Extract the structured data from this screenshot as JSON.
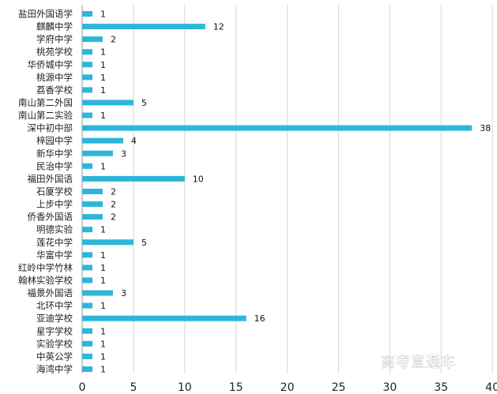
{
  "chart_data": {
    "type": "bar",
    "orientation": "horizontal",
    "categories": [
      "盐田外国语学",
      "麒麟中学",
      "学府中学",
      "桃苑学校",
      "华侨城中学",
      "桃源中学",
      "荔香学校",
      "南山第二外国",
      "南山第二实验",
      "深中初中部",
      "梓园中学",
      "新华中学",
      "民治中学",
      "福田外国语",
      "石厦学校",
      "上步中学",
      "侨香外国语",
      "明德实验",
      "莲花中学",
      "华富中学",
      "红岭中学竹林",
      "翰林实验学校",
      "福景外国语",
      "北环中学",
      "亚迪学校",
      "星宇学校",
      "实验学校",
      "中英公学",
      "海湾中学"
    ],
    "values": [
      1,
      12,
      2,
      1,
      1,
      1,
      1,
      5,
      1,
      38,
      4,
      3,
      1,
      10,
      2,
      2,
      2,
      1,
      5,
      1,
      1,
      1,
      3,
      1,
      16,
      1,
      1,
      1,
      1
    ],
    "xlim": [
      0,
      40
    ],
    "xticks": [
      "0",
      "5",
      "10",
      "15",
      "20",
      "25",
      "30",
      "35",
      "40"
    ],
    "grid": true,
    "bar_color": "#2eb6d8",
    "title": "",
    "xlabel": "",
    "ylabel": ""
  },
  "watermark": {
    "text": "高考直通车"
  }
}
